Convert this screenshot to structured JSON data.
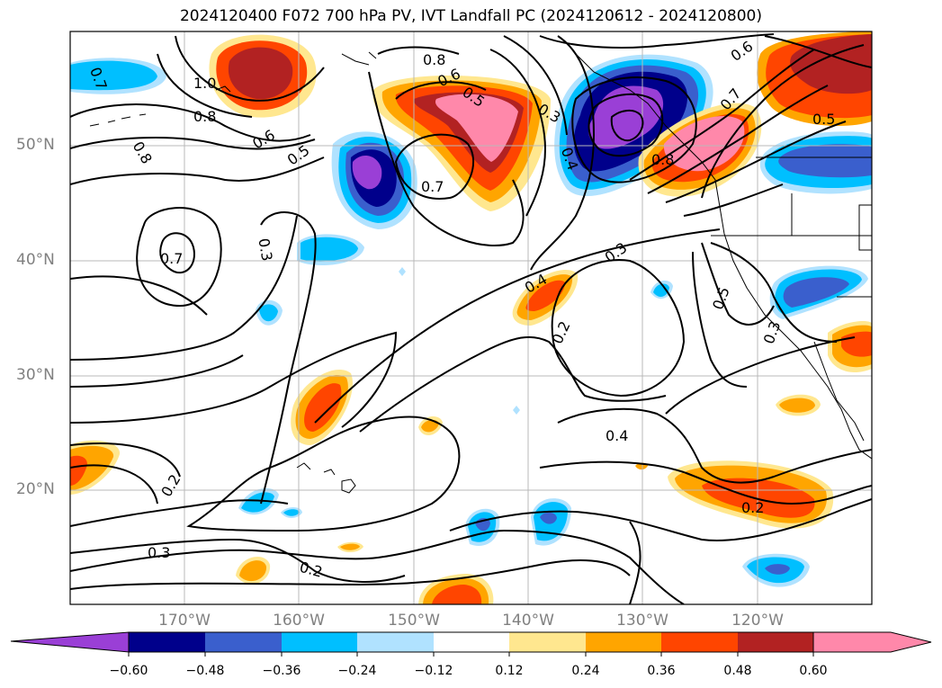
{
  "title": "2024120400 F072 700 hPa PV, IVT Landfall PC (2024120612 - 2024120800)",
  "lat_labels": [
    "50°N",
    "40°N",
    "30°N",
    "20°N"
  ],
  "lon_labels": [
    "170°W",
    "160°W",
    "150°W",
    "140°W",
    "130°W",
    "120°W"
  ],
  "contour_labels": [
    "0.7",
    "1.0",
    "0.8",
    "0.8",
    "0.6",
    "0.5",
    "0.8",
    "0.7",
    "0.6",
    "0.5",
    "0.3",
    "0.4",
    "0.8",
    "0.7",
    "0.5",
    "0.6",
    "0.7",
    "0.3",
    "0.3",
    "0.4",
    "0.2",
    "0.4",
    "0.2",
    "0.5",
    "0.3",
    "0.2",
    "0.3",
    "0.2"
  ],
  "colorbar": {
    "ticks": [
      "−0.60",
      "−0.48",
      "−0.36",
      "−0.24",
      "−0.12",
      "0.12",
      "0.24",
      "0.36",
      "0.48",
      "0.60"
    ],
    "colors": [
      "#9a3fd6",
      "#00008b",
      "#3a5fcd",
      "#00bfff",
      "#b0e2ff",
      "#ffffff",
      "#ffe78f",
      "#ffa500",
      "#ff4500",
      "#b22222",
      "#ff88aa"
    ]
  }
}
